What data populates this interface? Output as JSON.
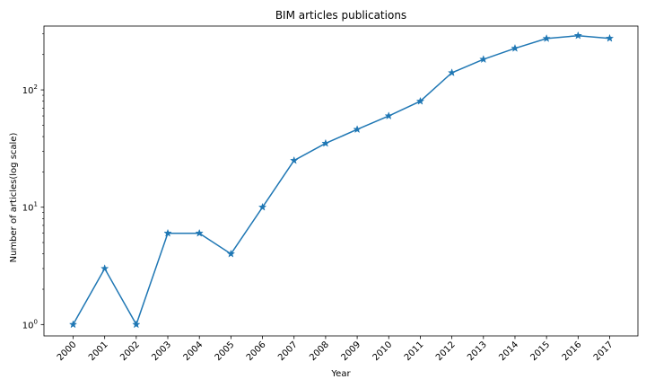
{
  "chart_data": {
    "type": "line",
    "title": "BIM articles publications",
    "xlabel": "Year",
    "ylabel": "Number of articles(log scale)",
    "yscale": "log",
    "ylim": [
      0.8,
      350
    ],
    "y_tick_labels": [
      {
        "value": 1,
        "base": "10",
        "exp": "0"
      },
      {
        "value": 10,
        "base": "10",
        "exp": "1"
      },
      {
        "value": 100,
        "base": "10",
        "exp": "2"
      }
    ],
    "categories": [
      "2000",
      "2001",
      "2002",
      "2003",
      "2004",
      "2005",
      "2006",
      "2007",
      "2008",
      "2009",
      "2010",
      "2011",
      "2012",
      "2013",
      "2014",
      "2015",
      "2016",
      "2017"
    ],
    "series": [
      {
        "values": [
          1,
          3,
          1,
          6,
          6,
          4,
          10,
          25,
          35,
          46,
          60,
          80,
          140,
          182,
          226,
          274,
          290,
          275
        ],
        "color": "#1f77b4",
        "marker": "star"
      }
    ],
    "grid": false,
    "legend": "none"
  }
}
